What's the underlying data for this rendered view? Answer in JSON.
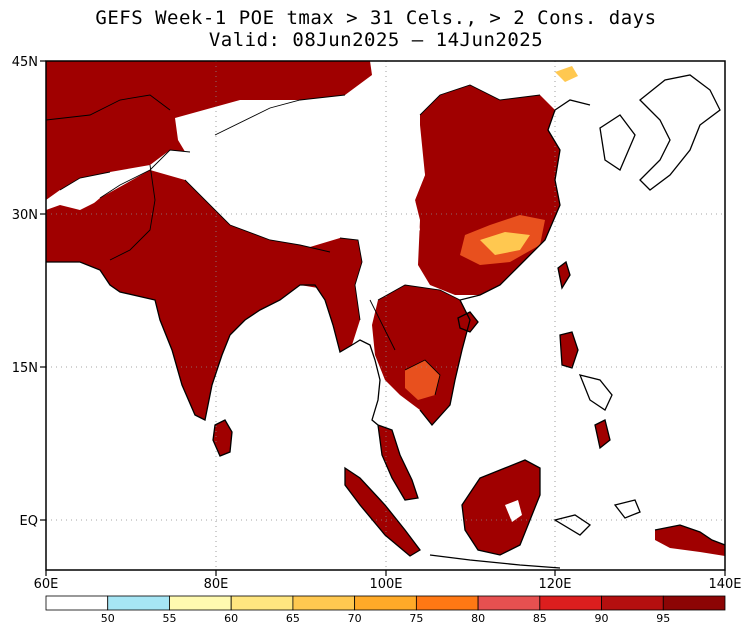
{
  "title": {
    "line1": "GEFS Week-1 POE tmax > 31 Cels., > 2 Cons. days",
    "line2": "Valid: 08Jun2025 – 14Jun2025"
  },
  "map": {
    "lon_range": [
      60,
      140
    ],
    "lat_range": [
      -7,
      45
    ],
    "lat_ticks": [
      {
        "value": 45,
        "label": "45N"
      },
      {
        "value": 30,
        "label": "30N"
      },
      {
        "value": 15,
        "label": "15N"
      },
      {
        "value": 0,
        "label": "EQ"
      }
    ],
    "lon_ticks": [
      {
        "value": 60,
        "label": "60E"
      },
      {
        "value": 80,
        "label": "80E"
      },
      {
        "value": 100,
        "label": "100E"
      },
      {
        "value": 120,
        "label": "120E"
      },
      {
        "value": 140,
        "label": "140E"
      }
    ],
    "gridlines": "dotted at 20° lon / 15° lat"
  },
  "colorbar": {
    "bins": [
      {
        "label": "",
        "color": "#ffffff"
      },
      {
        "label": "50",
        "color": "#a6e6f5"
      },
      {
        "label": "55",
        "color": "#fffab0"
      },
      {
        "label": "60",
        "color": "#ffe680"
      },
      {
        "label": "65",
        "color": "#ffc850"
      },
      {
        "label": "70",
        "color": "#ffaa28"
      },
      {
        "label": "75",
        "color": "#ff7814"
      },
      {
        "label": "80",
        "color": "#e65050"
      },
      {
        "label": "85",
        "color": "#dc1e1e"
      },
      {
        "label": "90",
        "color": "#b40f0f"
      },
      {
        "label": "95",
        "color": "#8c0505"
      }
    ]
  },
  "colors": {
    "probability_high": "#a00000",
    "probability_mid": "#e8501e",
    "probability_low": "#ffc850",
    "background": "#ffffff"
  }
}
